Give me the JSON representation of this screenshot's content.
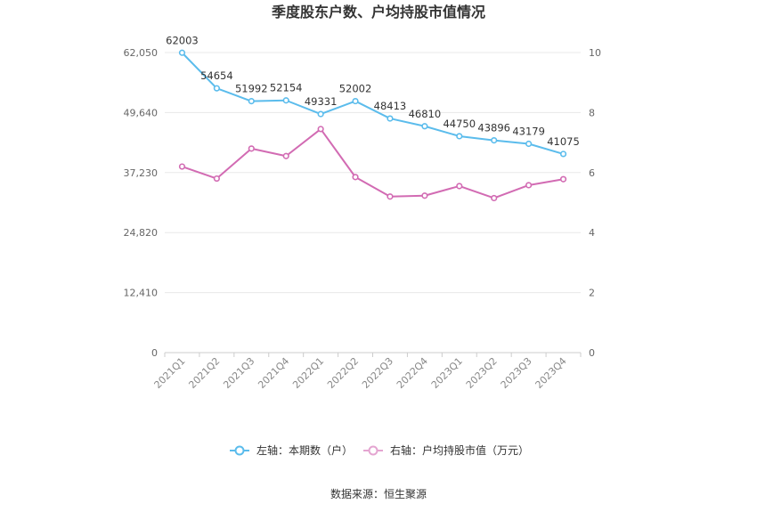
{
  "chart_data": {
    "type": "line",
    "title": "季度股东户数、户均持股市值情况",
    "categories": [
      "2021Q1",
      "2021Q2",
      "2021Q3",
      "2021Q4",
      "2022Q1",
      "2022Q2",
      "2022Q3",
      "2022Q4",
      "2023Q1",
      "2023Q2",
      "2023Q3",
      "2023Q4"
    ],
    "left_axis": {
      "min": 0,
      "max": 62050,
      "ticks": [
        "0",
        "12,410",
        "24,820",
        "37,230",
        "49,640",
        "62,050"
      ]
    },
    "right_axis": {
      "min": 0,
      "max": 10,
      "ticks": [
        "0",
        "2",
        "4",
        "6",
        "8",
        "10"
      ]
    },
    "series": [
      {
        "name": "左轴：本期数（户）",
        "axis": "left",
        "color": "#5bbcec",
        "values": [
          62003,
          54654,
          51992,
          52154,
          49331,
          52002,
          48413,
          46810,
          44750,
          43896,
          43179,
          41075
        ],
        "labels": [
          "62003",
          "54654",
          "51992",
          "52154",
          "49331",
          "52002",
          "48413",
          "46810",
          "44750",
          "43896",
          "43179",
          "41075"
        ]
      },
      {
        "name": "右轴：户均持股市值（万元）",
        "axis": "right",
        "color": "#d26bb3",
        "values": [
          6.2,
          5.8,
          6.8,
          6.55,
          7.45,
          5.85,
          5.2,
          5.23,
          5.55,
          5.15,
          5.58,
          5.78
        ]
      }
    ],
    "grid": true,
    "legend_position": "bottom"
  },
  "source_text": "数据来源：恒生聚源"
}
